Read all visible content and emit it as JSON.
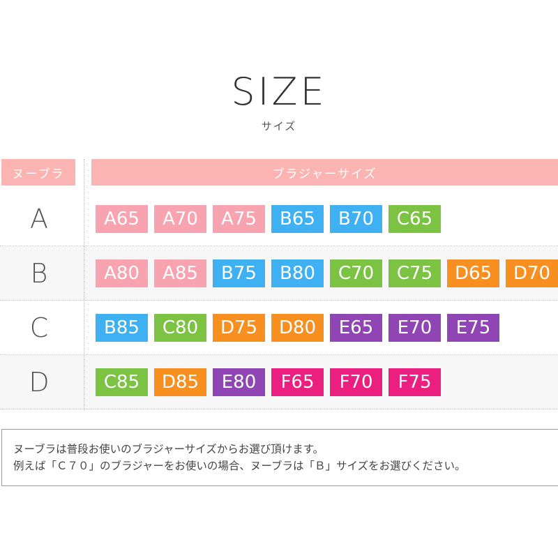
{
  "title": "SIZE",
  "subtitle": "サイズ",
  "header": {
    "left": "ヌーブラ",
    "right": "ブラジャーサイズ"
  },
  "colors": {
    "A": "#f7a3b0",
    "B": "#3fb0f2",
    "C": "#7cc243",
    "D": "#f79020",
    "E": "#8f45b4",
    "F": "#ea1f7f",
    "header": "#fbb4b1"
  },
  "rows": [
    {
      "cup": "A",
      "sizes": [
        "A65",
        "A70",
        "A75",
        "B65",
        "B70",
        "C65"
      ]
    },
    {
      "cup": "B",
      "sizes": [
        "A80",
        "A85",
        "B75",
        "B80",
        "C70",
        "C75",
        "D65",
        "D70"
      ]
    },
    {
      "cup": "C",
      "sizes": [
        "B85",
        "C80",
        "D75",
        "D80",
        "E65",
        "E70",
        "E75"
      ]
    },
    {
      "cup": "D",
      "sizes": [
        "C85",
        "D85",
        "E80",
        "F65",
        "F70",
        "F75"
      ]
    }
  ],
  "note": [
    "ヌーブラは普段お使いのブラジャーサイズからお選び頂けます。",
    "例えば「Ｃ７０」のブラジャーをお使いの場合、ヌーブラは「Ｂ」サイズをお選びください。"
  ]
}
